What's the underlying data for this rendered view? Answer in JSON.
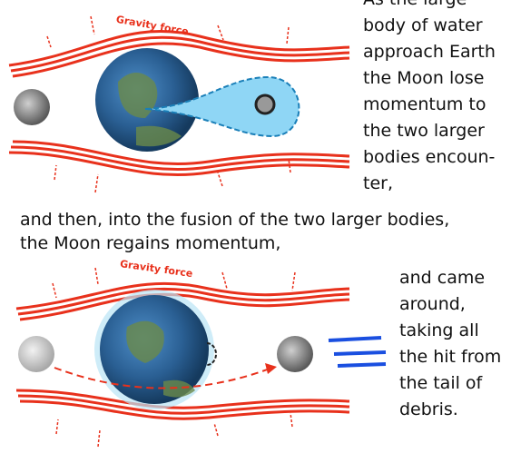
{
  "top_panel": {
    "force_label": "Gravity force",
    "text_lines": [
      "As the large",
      "body of water",
      "approach Earth",
      "the Moon lose",
      "momentum to",
      "the two larger",
      "bodies encoun-",
      "ter,"
    ]
  },
  "middle_text": {
    "lines": [
      "and then, into the fusion of the two larger bodies,",
      "the Moon regains momentum,"
    ]
  },
  "bottom_panel": {
    "force_label": "Gravity force",
    "text_lines": [
      "and came",
      "around,",
      "taking all",
      "the hit from",
      "the tail of",
      "debris."
    ]
  }
}
